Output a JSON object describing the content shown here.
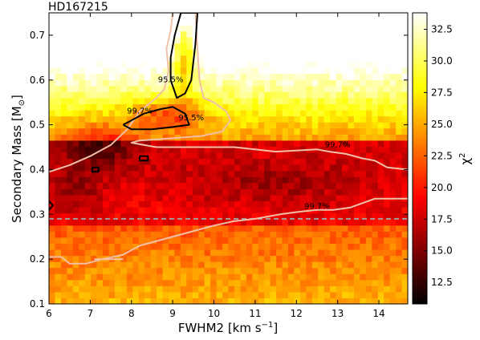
{
  "chart_data": {
    "type": "heatmap",
    "title": "HD167215",
    "xlabel_main": "FWHM2 [km s",
    "xlabel_sup": "−1",
    "xlabel_end": "]",
    "ylabel_main": "Secondary Mass [M",
    "ylabel_sub": "⊙",
    "ylabel_end": "]",
    "colorbar_label_main": "χ",
    "colorbar_label_sup": "2",
    "xlim": [
      6.0,
      14.7
    ],
    "ylim": [
      0.1,
      0.75
    ],
    "colorbar_range": [
      10.8,
      33.8
    ],
    "xticks": [
      6,
      7,
      8,
      9,
      10,
      11,
      12,
      13,
      14
    ],
    "xtick_labels": [
      "6",
      "7",
      "8",
      "9",
      "10",
      "11",
      "12",
      "13",
      "14"
    ],
    "yticks": [
      0.1,
      0.2,
      0.3,
      0.4,
      0.5,
      0.6,
      0.7
    ],
    "ytick_labels": [
      "0.1",
      "0.2",
      "0.3",
      "0.4",
      "0.5",
      "0.6",
      "0.7"
    ],
    "colorbar_ticks": [
      12.5,
      15.0,
      17.5,
      20.0,
      22.5,
      25.0,
      27.5,
      30.0,
      32.5
    ],
    "colorbar_tick_labels": [
      "12.5",
      "15.0",
      "17.5",
      "20.0",
      "22.5",
      "25.0",
      "27.5",
      "30.0",
      "32.5"
    ],
    "colormap": "hot",
    "reference_line": {
      "y": 0.29,
      "style": "dashed",
      "color": "#a0a0a0"
    },
    "contours": [
      {
        "level": "99.7%",
        "color": "#f0c0a8",
        "label_positions": [
          [
            8.2,
            0.525
          ],
          [
            13.0,
            0.45
          ],
          [
            12.5,
            0.312
          ]
        ],
        "paths": [
          [
            [
              6.0,
              0.395
            ],
            [
              6.5,
              0.41
            ],
            [
              7.0,
              0.43
            ],
            [
              7.5,
              0.455
            ],
            [
              7.9,
              0.49
            ],
            [
              8.2,
              0.53
            ],
            [
              8.6,
              0.56
            ],
            [
              8.8,
              0.58
            ],
            [
              8.9,
              0.62
            ],
            [
              8.85,
              0.67
            ],
            [
              8.95,
              0.71
            ],
            [
              9.0,
              0.75
            ]
          ],
          [
            [
              9.55,
              0.75
            ],
            [
              9.6,
              0.67
            ],
            [
              9.65,
              0.6
            ],
            [
              9.75,
              0.56
            ],
            [
              10.0,
              0.55
            ],
            [
              10.3,
              0.53
            ],
            [
              10.4,
              0.51
            ],
            [
              10.2,
              0.485
            ],
            [
              9.7,
              0.475
            ],
            [
              9.0,
              0.47
            ],
            [
              8.2,
              0.465
            ],
            [
              8.0,
              0.46
            ],
            [
              8.6,
              0.45
            ],
            [
              9.5,
              0.45
            ],
            [
              10.5,
              0.45
            ],
            [
              11.5,
              0.44
            ],
            [
              12.5,
              0.445
            ],
            [
              12.8,
              0.44
            ],
            [
              13.2,
              0.435
            ],
            [
              13.6,
              0.425
            ],
            [
              13.9,
              0.42
            ],
            [
              14.2,
              0.405
            ],
            [
              14.7,
              0.4
            ]
          ],
          [
            [
              6.0,
              0.205
            ],
            [
              6.3,
              0.205
            ],
            [
              6.5,
              0.19
            ],
            [
              6.9,
              0.19
            ],
            [
              7.3,
              0.2
            ],
            [
              7.8,
              0.21
            ],
            [
              8.2,
              0.23
            ],
            [
              8.8,
              0.245
            ],
            [
              9.4,
              0.26
            ],
            [
              10.0,
              0.275
            ],
            [
              10.5,
              0.285
            ],
            [
              11.0,
              0.29
            ],
            [
              11.6,
              0.3
            ],
            [
              12.0,
              0.305
            ],
            [
              12.5,
              0.31
            ],
            [
              12.9,
              0.31
            ],
            [
              13.3,
              0.315
            ],
            [
              13.6,
              0.325
            ],
            [
              13.9,
              0.335
            ],
            [
              14.3,
              0.335
            ],
            [
              14.7,
              0.335
            ]
          ],
          [
            [
              7.1,
              0.2
            ],
            [
              7.8,
              0.2
            ]
          ]
        ]
      },
      {
        "level": "95.5%",
        "color": "#000000",
        "label_positions": [
          [
            8.95,
            0.595
          ],
          [
            9.45,
            0.51
          ]
        ],
        "paths": [
          [
            [
              9.2,
              0.75
            ],
            [
              9.6,
              0.75
            ],
            [
              9.55,
              0.68
            ],
            [
              9.45,
              0.6
            ],
            [
              9.3,
              0.57
            ],
            [
              9.1,
              0.56
            ],
            [
              8.95,
              0.6
            ],
            [
              8.95,
              0.65
            ],
            [
              9.05,
              0.7
            ],
            [
              9.2,
              0.75
            ]
          ],
          [
            [
              7.8,
              0.5
            ],
            [
              8.3,
              0.525
            ],
            [
              8.7,
              0.535
            ],
            [
              9.0,
              0.54
            ],
            [
              9.3,
              0.525
            ],
            [
              9.4,
              0.5
            ],
            [
              9.0,
              0.495
            ],
            [
              8.5,
              0.49
            ],
            [
              8.0,
              0.49
            ],
            [
              7.8,
              0.5
            ]
          ],
          [
            [
              7.05,
              0.405
            ],
            [
              7.2,
              0.405
            ],
            [
              7.2,
              0.395
            ],
            [
              7.05,
              0.395
            ],
            [
              7.05,
              0.405
            ]
          ],
          [
            [
              8.2,
              0.43
            ],
            [
              8.4,
              0.43
            ],
            [
              8.4,
              0.42
            ],
            [
              8.2,
              0.42
            ],
            [
              8.2,
              0.43
            ]
          ],
          [
            [
              6.0,
              0.33
            ],
            [
              6.1,
              0.32
            ],
            [
              6.0,
              0.31
            ]
          ]
        ]
      }
    ]
  }
}
